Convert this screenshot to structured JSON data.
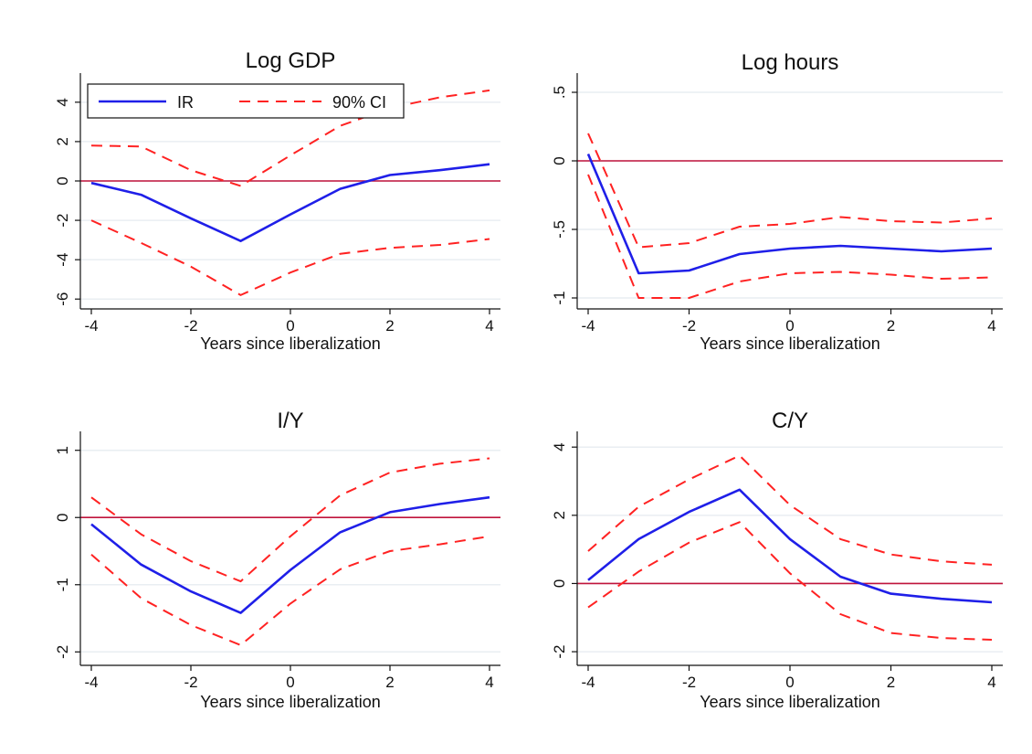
{
  "colors": {
    "ir": "#1f1fe8",
    "ci": "#ff2222",
    "zero": "#c0143c",
    "grid": "#e9eef2",
    "axis": "#111111"
  },
  "legend": {
    "ir_label": "IR",
    "ci_label": "90% CI",
    "placement": "top-left of first panel"
  },
  "chart_data": [
    {
      "type": "line",
      "title": "Log GDP",
      "xlabel": "Years since liberalization",
      "ylabel": "",
      "x": [
        -4,
        -3,
        -2,
        -1,
        0,
        1,
        2,
        3,
        4
      ],
      "xticks": [
        -4,
        -2,
        0,
        2,
        4
      ],
      "xtick_labels": [
        "-4",
        "-2",
        "0",
        "2",
        "4"
      ],
      "xlim": [
        -4,
        4
      ],
      "ylim": [
        -6.5,
        5.2
      ],
      "yticks": [
        -6,
        -4,
        -2,
        0,
        2,
        4
      ],
      "ytick_labels": [
        "-6",
        "-4",
        "-2",
        "0",
        "2",
        "4"
      ],
      "grid": true,
      "zero_line": 0,
      "series": [
        {
          "name": "IR",
          "style": "solid",
          "values": [
            -0.1,
            -0.7,
            -1.9,
            -3.05,
            -1.7,
            -0.4,
            0.3,
            0.55,
            0.85
          ]
        },
        {
          "name": "90% CI",
          "style": "dashed",
          "values": [
            1.8,
            1.75,
            0.55,
            -0.25,
            1.3,
            2.8,
            3.7,
            4.25,
            4.6
          ]
        },
        {
          "name": "90% CI",
          "style": "dashed",
          "values": [
            -2.0,
            -3.15,
            -4.35,
            -5.8,
            -4.65,
            -3.7,
            -3.4,
            -3.25,
            -2.95
          ]
        }
      ]
    },
    {
      "type": "line",
      "title": "Log hours",
      "xlabel": "Years since liberalization",
      "ylabel": "",
      "x": [
        -4,
        -3,
        -2,
        -1,
        0,
        1,
        2,
        3,
        4
      ],
      "xticks": [
        -4,
        -2,
        0,
        2,
        4
      ],
      "xtick_labels": [
        "-4",
        "-2",
        "0",
        "2",
        "4"
      ],
      "xlim": [
        -4,
        4
      ],
      "ylim": [
        -1.08,
        0.6
      ],
      "yticks": [
        -1,
        -0.5,
        0,
        0.5
      ],
      "ytick_labels": [
        "-1",
        "-.5",
        "0",
        ".5"
      ],
      "grid": true,
      "zero_line": 0,
      "series": [
        {
          "name": "IR",
          "style": "solid",
          "values": [
            0.05,
            -0.82,
            -0.8,
            -0.68,
            -0.64,
            -0.62,
            -0.64,
            -0.66,
            -0.64
          ]
        },
        {
          "name": "90% CI",
          "style": "dashed",
          "values": [
            0.2,
            -0.63,
            -0.6,
            -0.48,
            -0.46,
            -0.41,
            -0.44,
            -0.45,
            -0.42
          ]
        },
        {
          "name": "90% CI",
          "style": "dashed",
          "values": [
            -0.1,
            -1.0,
            -1.0,
            -0.88,
            -0.82,
            -0.81,
            -0.83,
            -0.86,
            -0.85
          ]
        }
      ]
    },
    {
      "type": "line",
      "title": "I/Y",
      "xlabel": "Years since liberalization",
      "ylabel": "",
      "x": [
        -4,
        -3,
        -2,
        -1,
        0,
        1,
        2,
        3,
        4
      ],
      "xticks": [
        -4,
        -2,
        0,
        2,
        4
      ],
      "xtick_labels": [
        "-4",
        "-2",
        "0",
        "2",
        "4"
      ],
      "xlim": [
        -4,
        4
      ],
      "ylim": [
        -2.2,
        1.2
      ],
      "yticks": [
        -2,
        -1,
        0,
        1
      ],
      "ytick_labels": [
        "-2",
        "-1",
        "0",
        "1"
      ],
      "grid": true,
      "zero_line": 0,
      "series": [
        {
          "name": "IR",
          "style": "solid",
          "values": [
            -0.1,
            -0.7,
            -1.1,
            -1.42,
            -0.78,
            -0.22,
            0.08,
            0.2,
            0.3
          ]
        },
        {
          "name": "90% CI",
          "style": "dashed",
          "values": [
            0.3,
            -0.25,
            -0.65,
            -0.95,
            -0.28,
            0.33,
            0.67,
            0.8,
            0.88
          ]
        },
        {
          "name": "90% CI",
          "style": "dashed",
          "values": [
            -0.55,
            -1.2,
            -1.6,
            -1.9,
            -1.28,
            -0.77,
            -0.5,
            -0.4,
            -0.28
          ]
        }
      ]
    },
    {
      "type": "line",
      "title": "C/Y",
      "xlabel": "Years since liberalization",
      "ylabel": "",
      "x": [
        -4,
        -3,
        -2,
        -1,
        0,
        1,
        2,
        3,
        4
      ],
      "xticks": [
        -4,
        -2,
        0,
        2,
        4
      ],
      "xtick_labels": [
        "-4",
        "-2",
        "0",
        "2",
        "4"
      ],
      "xlim": [
        -4,
        4
      ],
      "ylim": [
        -2.4,
        4.3
      ],
      "yticks": [
        -2,
        0,
        2,
        4
      ],
      "ytick_labels": [
        "-2",
        "0",
        "2",
        "4"
      ],
      "grid": true,
      "zero_line": 0,
      "series": [
        {
          "name": "IR",
          "style": "solid",
          "values": [
            0.1,
            1.3,
            2.1,
            2.75,
            1.3,
            0.2,
            -0.3,
            -0.45,
            -0.55
          ]
        },
        {
          "name": "90% CI",
          "style": "dashed",
          "values": [
            0.95,
            2.25,
            3.05,
            3.75,
            2.3,
            1.3,
            0.85,
            0.65,
            0.55
          ]
        },
        {
          "name": "90% CI",
          "style": "dashed",
          "values": [
            -0.7,
            0.35,
            1.2,
            1.8,
            0.3,
            -0.9,
            -1.45,
            -1.6,
            -1.65
          ]
        }
      ]
    }
  ]
}
